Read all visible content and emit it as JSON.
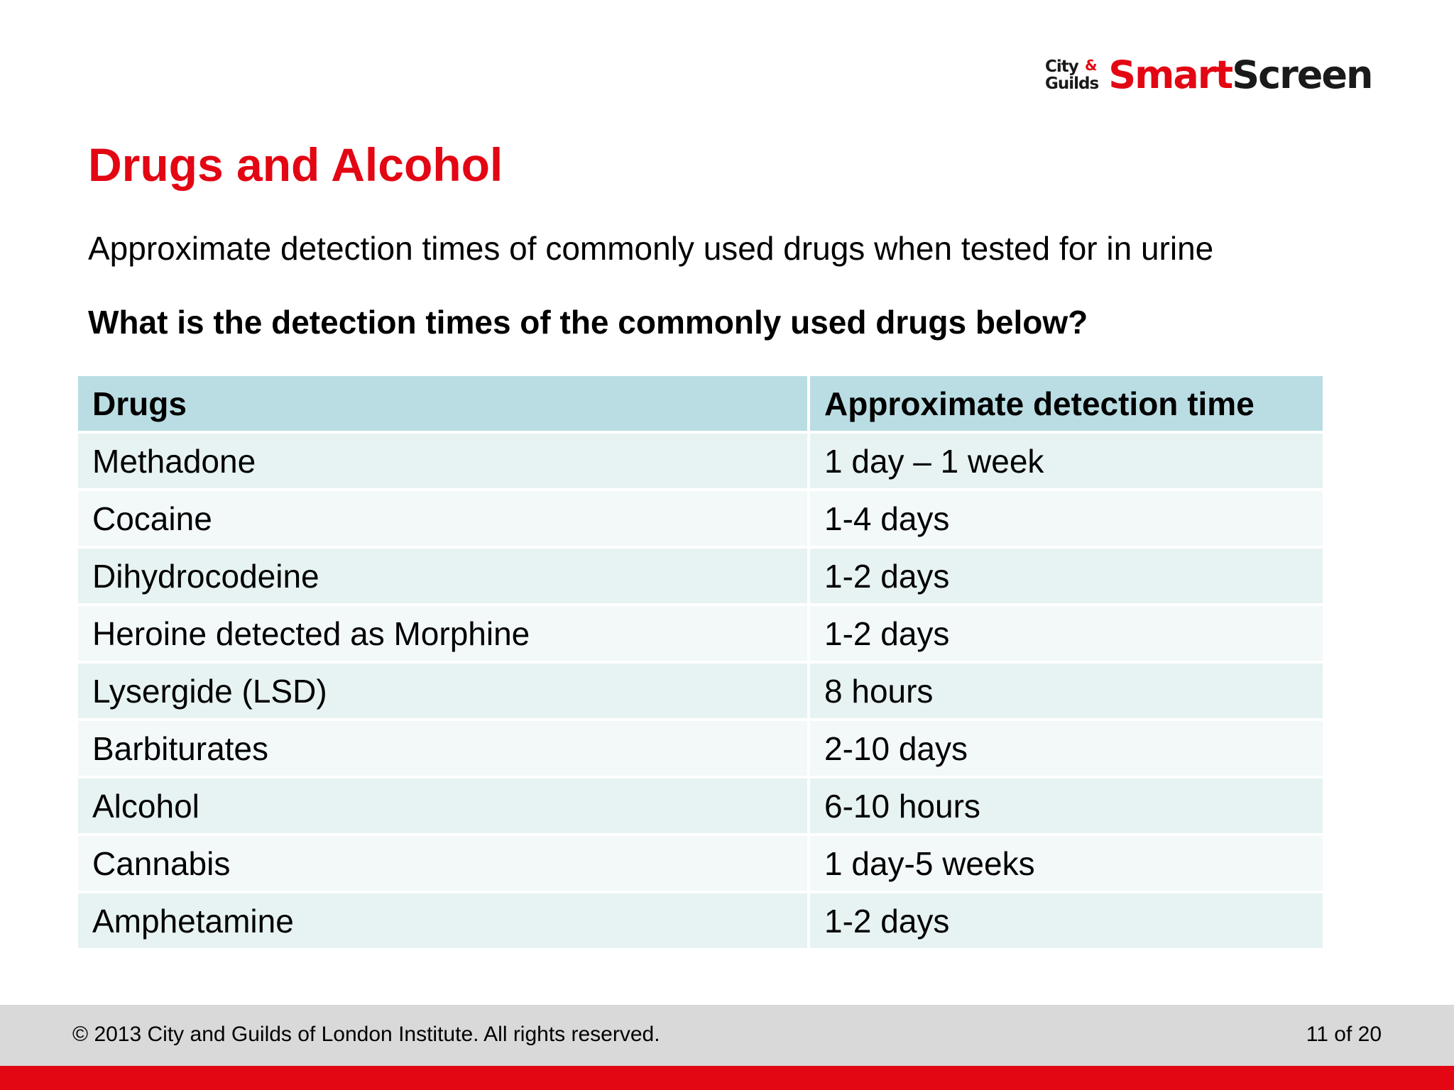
{
  "logo": {
    "city": "City",
    "amp": "&",
    "guilds": "Guilds",
    "smart": "Smart",
    "screen": "Screen"
  },
  "title": "Drugs and Alcohol",
  "subtitle": "Approximate detection times of commonly used drugs when tested for in urine",
  "question": "What is the detection times of the commonly used drugs below?",
  "table": {
    "headers": [
      "Drugs",
      "Approximate detection time"
    ],
    "rows": [
      [
        "Methadone",
        "1 day – 1 week"
      ],
      [
        "Cocaine",
        "1-4 days"
      ],
      [
        "Dihydrocodeine",
        "1-2 days"
      ],
      [
        "Heroine detected as Morphine",
        "1-2 days"
      ],
      [
        "Lysergide (LSD)",
        "8 hours"
      ],
      [
        "Barbiturates",
        "2-10 days"
      ],
      [
        "Alcohol",
        "6-10 hours"
      ],
      [
        "Cannabis",
        "1 day-5 weeks"
      ],
      [
        "Amphetamine",
        "1-2 days"
      ]
    ]
  },
  "footer": {
    "copyright": "© 2013 City and Guilds of London Institute. All rights reserved.",
    "page": "11 of 20"
  },
  "colors": {
    "accent_red": "#e30613",
    "header_row": "#b9dde3",
    "row_odd": "#e7f2f2",
    "row_even": "#f3f8f8",
    "footer_bg": "#d9d9d9"
  }
}
